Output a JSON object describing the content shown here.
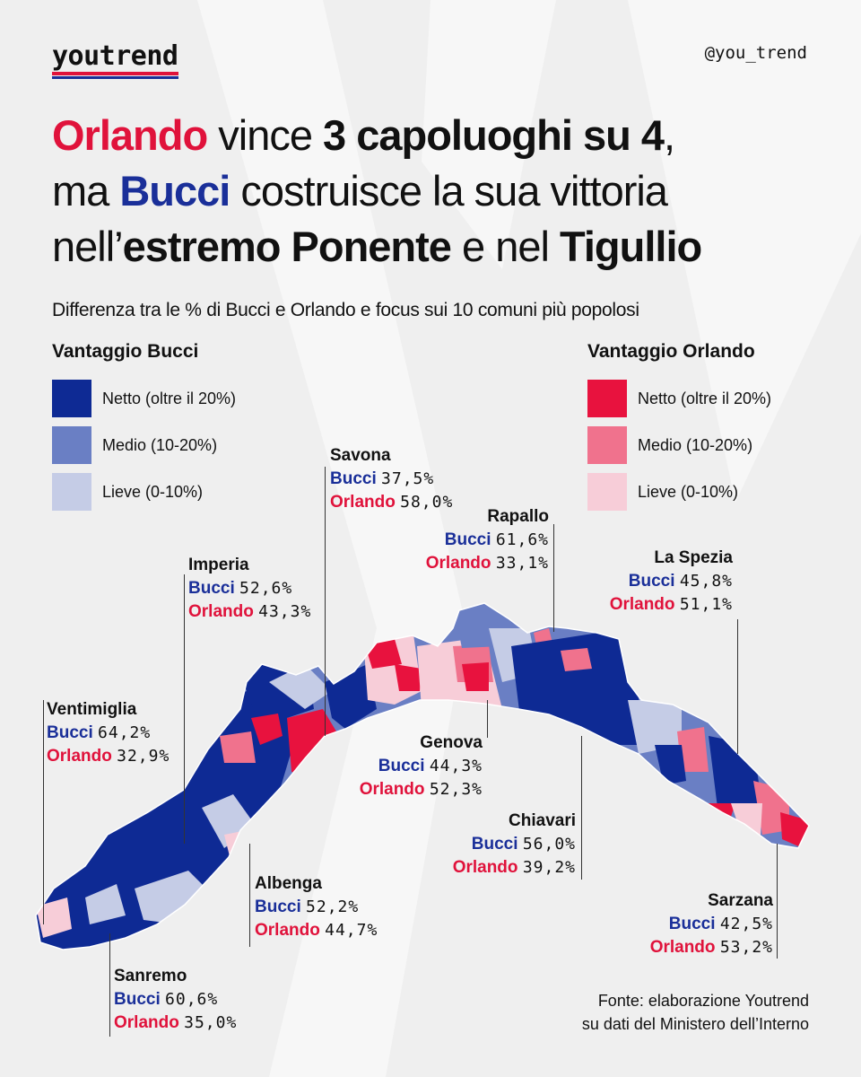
{
  "brand": "youtrend",
  "handle": "@you_trend",
  "title": {
    "l1_a": "Orlando",
    "l1_b": " vince ",
    "l1_c": "3 capoluoghi su 4",
    "l1_d": ",",
    "l2_a": "ma ",
    "l2_b": "Bucci",
    "l2_c": " costruisce la sua vittoria",
    "l3_a": "nell’",
    "l3_b": "estremo Ponente",
    "l3_c": " e nel ",
    "l3_d": "Tigullio"
  },
  "subtitle": "Differenza tra le % di Bucci e Orlando e focus sui 10 comuni più popolosi",
  "colors": {
    "bucci_strong": "#0e2a94",
    "bucci_medium": "#6a7fc4",
    "bucci_light": "#c5cce6",
    "orlando_strong": "#e8123e",
    "orlando_medium": "#f0728d",
    "orlando_light": "#f7cdd8",
    "background": "#efefef"
  },
  "legend_bucci": {
    "title": "Vantaggio Bucci",
    "items": [
      "Netto (oltre il 20%)",
      "Medio (10-20%)",
      "Lieve (0-10%)"
    ]
  },
  "legend_orlando": {
    "title": "Vantaggio Orlando",
    "items": [
      "Netto (oltre il 20%)",
      "Medio (10-20%)",
      "Lieve (0-10%)"
    ]
  },
  "cand_bucci": "Bucci",
  "cand_orlando": "Orlando",
  "cities": {
    "savona": {
      "name": "Savona",
      "bucci": "37,5%",
      "orlando": "58,0%"
    },
    "rapallo": {
      "name": "Rapallo",
      "bucci": "61,6%",
      "orlando": "33,1%"
    },
    "imperia": {
      "name": "Imperia",
      "bucci": "52,6%",
      "orlando": "43,3%"
    },
    "laspezia": {
      "name": "La Spezia",
      "bucci": "45,8%",
      "orlando": "51,1%"
    },
    "ventimiglia": {
      "name": "Ventimiglia",
      "bucci": "64,2%",
      "orlando": "32,9%"
    },
    "genova": {
      "name": "Genova",
      "bucci": "44,3%",
      "orlando": "52,3%"
    },
    "chiavari": {
      "name": "Chiavari",
      "bucci": "56,0%",
      "orlando": "39,2%"
    },
    "albenga": {
      "name": "Albenga",
      "bucci": "52,2%",
      "orlando": "44,7%"
    },
    "sarzana": {
      "name": "Sarzana",
      "bucci": "42,5%",
      "orlando": "53,2%"
    },
    "sanremo": {
      "name": "Sanremo",
      "bucci": "60,6%",
      "orlando": "35,0%"
    }
  },
  "source": {
    "line1": "Fonte: elaborazione Youtrend",
    "line2": "su dati del Ministero dell’Interno"
  }
}
